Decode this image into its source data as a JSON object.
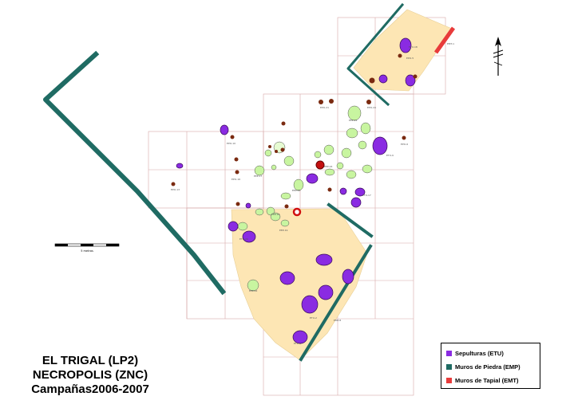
{
  "title": {
    "line1": "EL TRIGAL (LP2)",
    "line2": "NECROPOLIS (ZNC)",
    "line3": "Campañas2006-2007"
  },
  "legend": {
    "items": [
      {
        "label": "Sepulturas (ETU)",
        "color": "#8a2be2"
      },
      {
        "label": "Muros de Piedra (EMP)",
        "color": "#1f6b63"
      },
      {
        "label": "Muros de Tapial (EMT)",
        "color": "#e83b3b"
      }
    ]
  },
  "scale_bar": {
    "label": "5 metros"
  },
  "north_arrow": {
    "icon": "north-arrow-icon"
  },
  "colors": {
    "grave": "#8a2be2",
    "pit_fill": "#c8f5a0",
    "stone_wall": "#1f6b63",
    "rammed_earth_wall": "#e83b3b",
    "excavated_area": "#fde6b4",
    "post_hole": "#7a2a10",
    "grid": "#d7a8a8"
  }
}
